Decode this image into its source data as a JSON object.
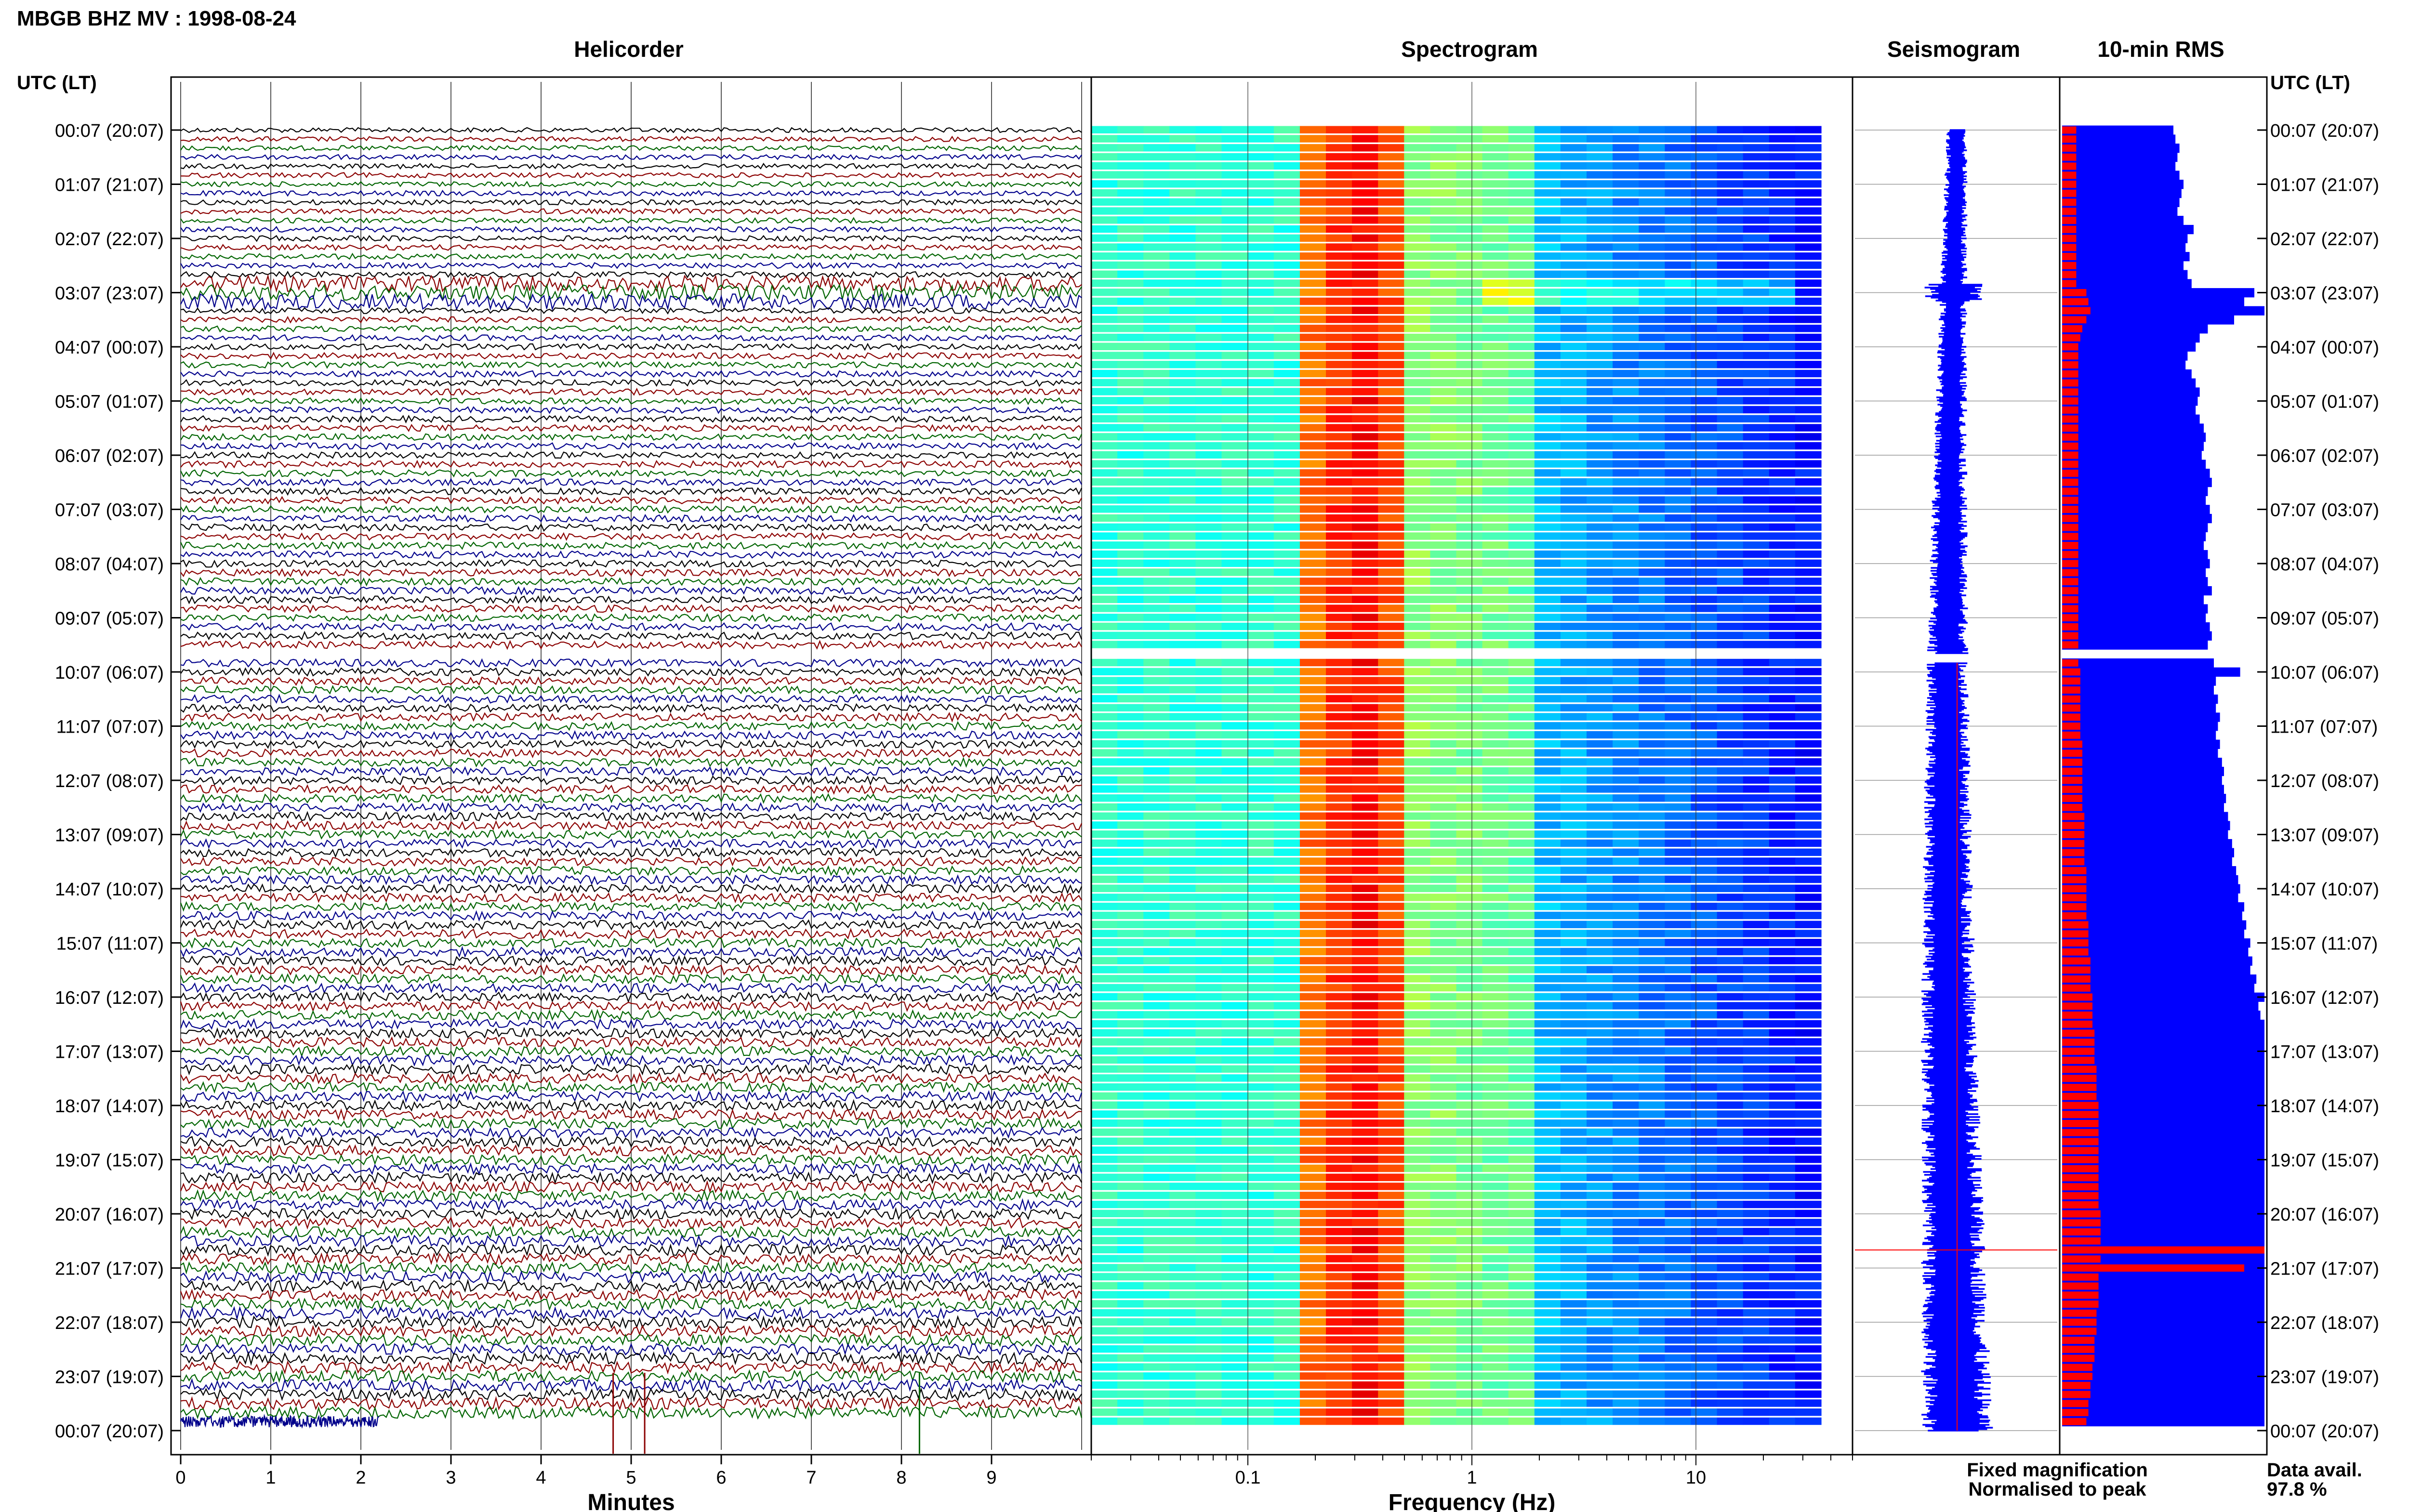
{
  "header": {
    "title": "MBGB BHZ MV : 1998-08-24"
  },
  "panels": {
    "helicorder": "Helicorder",
    "spectrogram": "Spectrogram",
    "seismogram": "Seismogram",
    "rms": "10-min RMS"
  },
  "axis": {
    "time_label": "UTC (LT)",
    "minutes_label": "Minutes",
    "frequency_label": "Frequency (Hz)"
  },
  "legend": {
    "fixed": "Fixed magnification",
    "normalised": "Normalised to peak",
    "fixed_color": "#0000ff",
    "normalised_color": "#ff0000"
  },
  "availability": {
    "label": "Data avail.",
    "value": "97.8 %"
  },
  "colors": {
    "trace_cycle": [
      "#000000",
      "#8b0000",
      "#006400",
      "#00008b"
    ],
    "rms_fixed": "#0000ff",
    "rms_norm": "#ff0000"
  },
  "chart_data": [
    {
      "type": "line",
      "panel": "helicorder",
      "rows_per_hour": 6,
      "row_minutes": 10,
      "xlim": [
        0,
        10
      ],
      "xticks": [
        0,
        1,
        2,
        3,
        4,
        5,
        6,
        7,
        8,
        9
      ],
      "xlabel": "Minutes",
      "yticks_utc": [
        "00:07 (20:07)",
        "01:07 (21:07)",
        "02:07 (22:07)",
        "03:07 (23:07)",
        "04:07 (00:07)",
        "05:07 (01:07)",
        "06:07 (02:07)",
        "07:07 (03:07)",
        "08:07 (04:07)",
        "09:07 (05:07)",
        "10:07 (06:07)",
        "11:07 (07:07)",
        "12:07 (08:07)",
        "13:07 (09:07)",
        "14:07 (10:07)",
        "15:07 (11:07)",
        "16:07 (12:07)",
        "17:07 (13:07)",
        "18:07 (14:07)",
        "19:07 (15:07)",
        "20:07 (16:07)",
        "21:07 (17:07)",
        "22:07 (18:07)",
        "23:07 (19:07)",
        "00:07 (20:07)"
      ],
      "data_gap_hours": [
        9.6,
        9.75
      ],
      "large_signal_hours": [
        2.9,
        3.1
      ]
    },
    {
      "type": "heatmap",
      "panel": "spectrogram",
      "xscale": "log",
      "xlim": [
        0.02,
        50
      ],
      "xticks": [
        "0.1",
        "1",
        "10"
      ],
      "xlabel": "Frequency (Hz)",
      "peak_band_hz": [
        0.2,
        0.5
      ],
      "data_gap_hours": [
        9.6,
        9.75
      ]
    },
    {
      "type": "line",
      "panel": "seismogram",
      "data_gap_hours": [
        9.6,
        9.75
      ]
    },
    {
      "type": "bar",
      "panel": "rms",
      "interval_minutes": 10,
      "series": [
        {
          "name": "Fixed magnification",
          "color": "#0000ff",
          "values": [
            0.55,
            0.56,
            0.58,
            0.57,
            0.56,
            0.58,
            0.6,
            0.59,
            0.58,
            0.57,
            0.6,
            0.65,
            0.62,
            0.61,
            0.63,
            0.6,
            0.62,
            0.64,
            0.95,
            0.9,
            1.0,
            0.85,
            0.72,
            0.68,
            0.66,
            0.62,
            0.61,
            0.64,
            0.66,
            0.68,
            0.67,
            0.66,
            0.68,
            0.7,
            0.71,
            0.7,
            0.69,
            0.71,
            0.73,
            0.74,
            0.72,
            0.71,
            0.73,
            0.74,
            0.72,
            0.71,
            0.7,
            0.72,
            0.73,
            0.71,
            0.72,
            0.74,
            0.7,
            0.72,
            0.71,
            0.73,
            0.74,
            0.72,
            0.73,
            0.75,
            0.88,
            0.76,
            0.75,
            0.77,
            0.76,
            0.78,
            0.77,
            0.76,
            0.78,
            0.77,
            0.79,
            0.8,
            0.79,
            0.8,
            0.81,
            0.8,
            0.82,
            0.83,
            0.82,
            0.84,
            0.85,
            0.84,
            0.86,
            0.87,
            0.88,
            0.87,
            0.9,
            0.89,
            0.91,
            0.9,
            0.93,
            0.92,
            0.94,
            0.93,
            0.96,
            0.95,
            1.0,
            0.97,
            0.98,
            1.0,
            1.0,
            1.0,
            1.0,
            1.0,
            1.0,
            1.0,
            1.0,
            1.0,
            1.0,
            1.0,
            1.0,
            1.0,
            1.0,
            1.0,
            1.0,
            1.0,
            1.0,
            1.0,
            1.0,
            1.0,
            1.0,
            1.0,
            1.0,
            1.0,
            1.0,
            1.0,
            1.0,
            1.0,
            1.0,
            1.0,
            1.0,
            1.0,
            1.0,
            1.0,
            1.0,
            1.0,
            1.0,
            1.0,
            1.0,
            1.0,
            1.0,
            1.0,
            1.0,
            1.0
          ]
        },
        {
          "name": "Normalised to peak",
          "color": "#ff0000",
          "values": [
            0.07,
            0.07,
            0.07,
            0.07,
            0.07,
            0.07,
            0.07,
            0.07,
            0.07,
            0.07,
            0.07,
            0.07,
            0.07,
            0.07,
            0.07,
            0.07,
            0.07,
            0.07,
            0.12,
            0.13,
            0.14,
            0.12,
            0.1,
            0.09,
            0.08,
            0.08,
            0.08,
            0.08,
            0.08,
            0.08,
            0.08,
            0.08,
            0.08,
            0.08,
            0.08,
            0.08,
            0.08,
            0.08,
            0.08,
            0.08,
            0.08,
            0.08,
            0.08,
            0.08,
            0.08,
            0.08,
            0.08,
            0.08,
            0.08,
            0.08,
            0.08,
            0.08,
            0.08,
            0.08,
            0.08,
            0.08,
            0.08,
            0.08,
            0.08,
            0.08,
            0.09,
            0.09,
            0.09,
            0.09,
            0.09,
            0.09,
            0.09,
            0.09,
            0.1,
            0.1,
            0.1,
            0.1,
            0.1,
            0.1,
            0.1,
            0.1,
            0.11,
            0.11,
            0.11,
            0.11,
            0.11,
            0.11,
            0.12,
            0.12,
            0.12,
            0.12,
            0.12,
            0.12,
            0.13,
            0.13,
            0.13,
            0.13,
            0.14,
            0.14,
            0.14,
            0.14,
            0.15,
            0.15,
            0.15,
            0.15,
            0.16,
            0.16,
            0.16,
            0.16,
            0.17,
            0.17,
            0.17,
            0.17,
            0.18,
            0.18,
            0.18,
            0.18,
            0.18,
            0.18,
            0.18,
            0.18,
            0.18,
            0.18,
            0.18,
            0.18,
            0.19,
            0.19,
            0.19,
            0.19,
            1.0,
            0.19,
            0.9,
            0.18,
            0.18,
            0.18,
            0.18,
            0.17,
            0.17,
            0.17,
            0.16,
            0.16,
            0.16,
            0.15,
            0.15,
            0.14,
            0.14,
            0.13,
            0.13,
            0.12
          ]
        }
      ],
      "data_gap_hours": [
        9.6,
        9.75
      ]
    }
  ]
}
